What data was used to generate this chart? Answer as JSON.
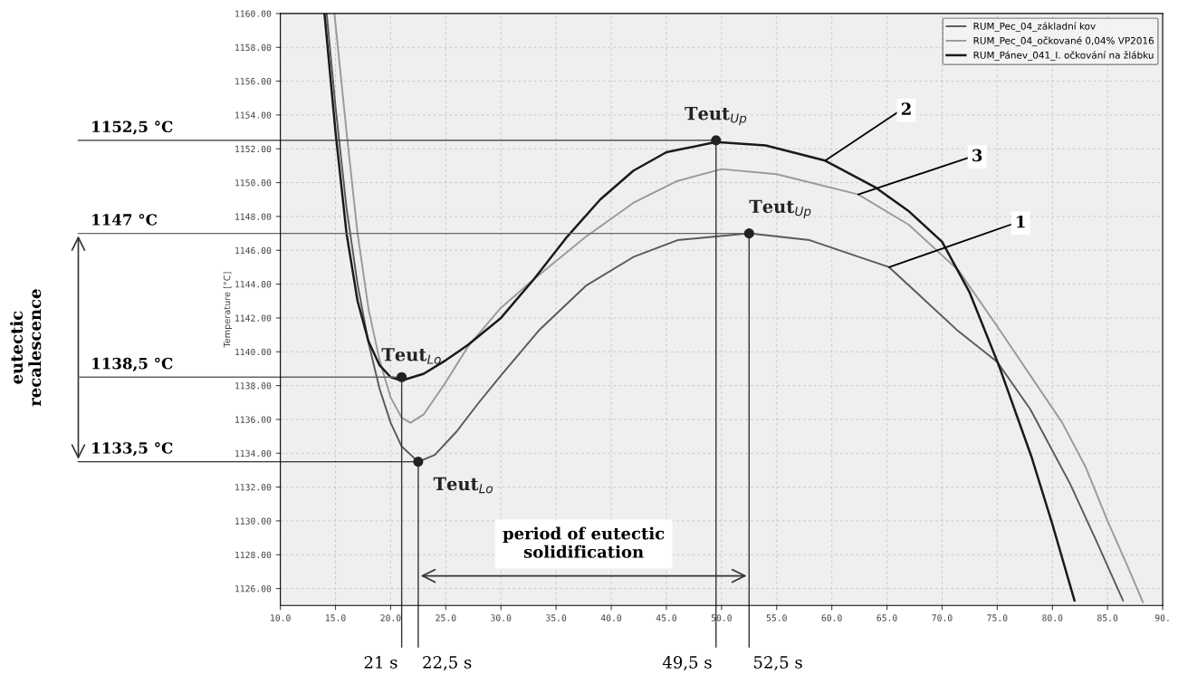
{
  "chart_data": {
    "type": "line",
    "ylabel": "Temperature [°C]",
    "xlim": [
      10,
      90
    ],
    "ylim": [
      1125,
      1160
    ],
    "xticks": [
      {
        "value": 10,
        "label": "10.0"
      },
      {
        "value": 15,
        "label": "15.0"
      },
      {
        "value": 20,
        "label": "20.0"
      },
      {
        "value": 25,
        "label": "25.0"
      },
      {
        "value": 30,
        "label": "30.0"
      },
      {
        "value": 35,
        "label": "35.0"
      },
      {
        "value": 40,
        "label": "40.0"
      },
      {
        "value": 45,
        "label": "45.0"
      },
      {
        "value": 50,
        "label": "50.0"
      },
      {
        "value": 55,
        "label": "55.0"
      },
      {
        "value": 60,
        "label": "60.0"
      },
      {
        "value": 65,
        "label": "65.0"
      },
      {
        "value": 70,
        "label": "70.0"
      },
      {
        "value": 75,
        "label": "75.0"
      },
      {
        "value": 80,
        "label": "80.0"
      },
      {
        "value": 85,
        "label": "85.0"
      },
      {
        "value": 90,
        "label": "90."
      }
    ],
    "yticks": [
      {
        "value": 1126,
        "label": "1126.00"
      },
      {
        "value": 1128,
        "label": "1128.00"
      },
      {
        "value": 1130,
        "label": "1130.00"
      },
      {
        "value": 1132,
        "label": "1132.00"
      },
      {
        "value": 1134,
        "label": "1134.00"
      },
      {
        "value": 1136,
        "label": "1136.00"
      },
      {
        "value": 1138,
        "label": "1138.00"
      },
      {
        "value": 1140,
        "label": "1140.00"
      },
      {
        "value": 1142,
        "label": "1142.00"
      },
      {
        "value": 1144,
        "label": "1144.00"
      },
      {
        "value": 1146,
        "label": "1146.00"
      },
      {
        "value": 1148,
        "label": "1148.00"
      },
      {
        "value": 1150,
        "label": "1150.00"
      },
      {
        "value": 1152,
        "label": "1152.00"
      },
      {
        "value": 1154,
        "label": "1154.00"
      },
      {
        "value": 1156,
        "label": "1156.00"
      },
      {
        "value": 1158,
        "label": "1158.00"
      },
      {
        "value": 1160,
        "label": "1160.00"
      }
    ],
    "grid": true,
    "legend": "top right",
    "marker": "none",
    "line_style": "solid",
    "series": [
      {
        "name": "RUM_Pec_04_základní kov",
        "color": "#5a5a5a",
        "x": [
          14.2,
          15,
          16,
          17,
          18,
          19,
          20,
          21,
          22.5,
          24,
          26,
          28,
          30,
          33.5,
          37.7,
          42,
          46,
          52.5,
          58,
          65.2,
          71.5,
          75,
          78,
          81.6,
          84,
          86.4
        ],
        "values": [
          1160,
          1154.5,
          1148.5,
          1144,
          1140.5,
          1137.8,
          1135.8,
          1134.4,
          1133.5,
          1133.9,
          1135.3,
          1137,
          1138.6,
          1141.3,
          1143.9,
          1145.6,
          1146.6,
          1147,
          1146.6,
          1145,
          1141.2,
          1139.4,
          1136.6,
          1132.2,
          1128.8,
          1125.3
        ]
      },
      {
        "name": "RUM_Pec_04_očkované 0,04% VP2016",
        "color": "#9a9a9a",
        "x": [
          14.9,
          16,
          17,
          18,
          19,
          20,
          21,
          21.8,
          23,
          25,
          27,
          30,
          33,
          37.7,
          42,
          46,
          50,
          55,
          62.4,
          67,
          71.5,
          75,
          78,
          80.9,
          83,
          85,
          86.7,
          88.2
        ],
        "values": [
          1160,
          1153,
          1147,
          1142.5,
          1139.5,
          1137.3,
          1136.1,
          1135.8,
          1136.3,
          1138.2,
          1140.3,
          1142.6,
          1144.3,
          1146.8,
          1148.8,
          1150.1,
          1150.8,
          1150.5,
          1149.3,
          1147.5,
          1144.8,
          1141.5,
          1138.6,
          1135.8,
          1133.2,
          1130,
          1127.5,
          1125.2
        ]
      },
      {
        "name": "RUM_Pánev_041_I. očkování na žlábku",
        "color": "#1a1a1a",
        "x": [
          14,
          15,
          16,
          17,
          18,
          19,
          20,
          21,
          23,
          25,
          27,
          30,
          33,
          36,
          39,
          42,
          45,
          49.5,
          54,
          59.4,
          64,
          67,
          70,
          72.5,
          75.2,
          78.1,
          80,
          82
        ],
        "values": [
          1160,
          1153,
          1147,
          1143,
          1140.6,
          1139.2,
          1138.5,
          1138.3,
          1138.7,
          1139.5,
          1140.4,
          1142,
          1144.3,
          1146.8,
          1149,
          1150.7,
          1151.8,
          1152.4,
          1152.2,
          1151.3,
          1149.7,
          1148.3,
          1146.5,
          1143.5,
          1139.1,
          1133.8,
          1129.8,
          1125.3
        ]
      }
    ],
    "ref_lines": [
      {
        "axis": "y",
        "value": 1152.5,
        "label": "1152,5 °C",
        "color": "#333333"
      },
      {
        "axis": "y",
        "value": 1147,
        "label": "1147 °C",
        "color": "#666666"
      },
      {
        "axis": "y",
        "value": 1138.5,
        "label": "1138,5 °C",
        "color": "#666666"
      },
      {
        "axis": "y",
        "value": 1133.5,
        "label": "1133,5 °C",
        "color": "#333333"
      },
      {
        "axis": "x",
        "value": 21,
        "label": "21 s",
        "color": "#333333"
      },
      {
        "axis": "x",
        "value": 22.5,
        "label": "22,5 s",
        "color": "#333333"
      },
      {
        "axis": "x",
        "value": 49.5,
        "label": "49,5 s",
        "color": "#333333"
      },
      {
        "axis": "x",
        "value": 52.5,
        "label": "52,5 s",
        "color": "#333333"
      }
    ],
    "annotations": [
      "eutectic\nrecalescence",
      "period of eutectic\nsolidification",
      {
        "text": "Teut$_{Up}$",
        "x": 49.5,
        "y": 1152.5
      },
      {
        "text": "Teut$_{Up}$",
        "x": 52.5,
        "y": 1147
      },
      {
        "text": "Teut$_{Lo}$",
        "x": 21,
        "y": 1138.5
      },
      {
        "text": "Teut$_{Lo}$",
        "x": 22.5,
        "y": 1133.5
      },
      {
        "text": "2",
        "x": 59.4,
        "y": 1151.3
      },
      {
        "text": "3",
        "x": 62.4,
        "y": 1149.3
      },
      {
        "text": "1",
        "x": 65.2,
        "y": 1145
      }
    ]
  }
}
